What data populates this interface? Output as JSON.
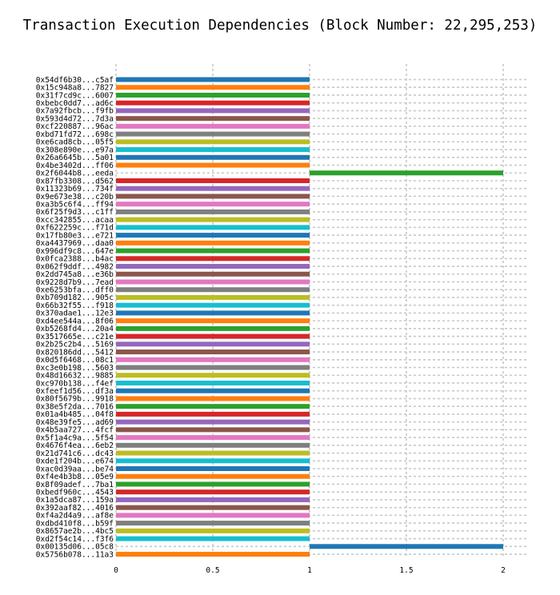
{
  "chart_data": {
    "type": "bar",
    "orientation": "horizontal",
    "title": "Transaction Execution Dependencies (Block Number: 22,295,253)",
    "xlabel": "",
    "ylabel": "",
    "xlim": [
      0,
      2.1
    ],
    "xticks": [
      "0",
      "0.5",
      "1",
      "1.5",
      "2"
    ],
    "grid": true,
    "categories": [
      "0x54df6b30...c5af",
      "0x15c948a8...7827",
      "0x31f7cd9c...6007",
      "0xbebc0dd7...ad6c",
      "0x7a92fbcb...f9fb",
      "0x593d4d72...7d3a",
      "0xcf220887...96ac",
      "0xbd71fd72...698c",
      "0xe6cad8cb...05f5",
      "0x308e890e...e97a",
      "0x26a6645b...5a01",
      "0x4be3402d...ff06",
      "0x2f6044b8...eeda",
      "0x87fb3308...d562",
      "0x11323b69...734f",
      "0x9e673e38...c20b",
      "0xa3b5c6f4...ff94",
      "0x6f25f9d3...c1ff",
      "0xcc342855...acaa",
      "0xf622259c...f71d",
      "0x17fb80e3...e721",
      "0xa4437969...daa0",
      "0x996df9c8...647e",
      "0x0fca2388...b4ac",
      "0x062f9ddf...4982",
      "0x2dd745a8...e36b",
      "0x9228d7b9...7ead",
      "0xe6253bfa...dff0",
      "0xb709d182...905c",
      "0x66b32f55...f918",
      "0x370adae1...12e3",
      "0xd4ee544a...8f06",
      "0xb5268fd4...20a4",
      "0x3517665e...c21e",
      "0x2b25c2b4...5169",
      "0x820186dd...5412",
      "0x0d5f6468...08c1",
      "0xc3e0b198...5603",
      "0x48d16632...9885",
      "0xc970b138...f4ef",
      "0xfeef1d56...df3a",
      "0x80f5679b...9918",
      "0x38e5f2da...7016",
      "0x01a4b485...04f8",
      "0x48e39fe5...ad69",
      "0x4b5aa727...4fcf",
      "0x5f1a4c9a...5f54",
      "0x4676f4ea...6eb2",
      "0x21d741c6...dc43",
      "0xde1f204b...e674",
      "0xac0d39aa...be74",
      "0xf4e4b3b8...05e9",
      "0x8f09adef...7ba1",
      "0xbedf960c...4543",
      "0x1a5dca87...159a",
      "0x392aaf82...4016",
      "0xf4a2d4a9...af8e",
      "0xdbd410f8...b59f",
      "0x8657ae2b...4bc5",
      "0xd2f54c14...f3f6",
      "0x00135d06...05c8",
      "0x5756b078...11a3"
    ],
    "values": [
      1,
      1,
      1,
      1,
      1,
      1,
      1,
      1,
      1,
      1,
      1,
      1,
      2,
      1,
      1,
      1,
      1,
      1,
      1,
      1,
      1,
      1,
      1,
      1,
      1,
      1,
      1,
      1,
      1,
      1,
      1,
      1,
      1,
      1,
      1,
      1,
      1,
      1,
      1,
      1,
      1,
      1,
      1,
      1,
      1,
      1,
      1,
      1,
      1,
      1,
      1,
      1,
      1,
      1,
      1,
      1,
      1,
      1,
      1,
      1,
      2,
      1
    ],
    "colors": [
      "#1f77b4",
      "#ff7f0e",
      "#2ca02c",
      "#d62728",
      "#9467bd",
      "#8c564b",
      "#e377c2",
      "#7f7f7f",
      "#bcbd22",
      "#17becf"
    ]
  }
}
